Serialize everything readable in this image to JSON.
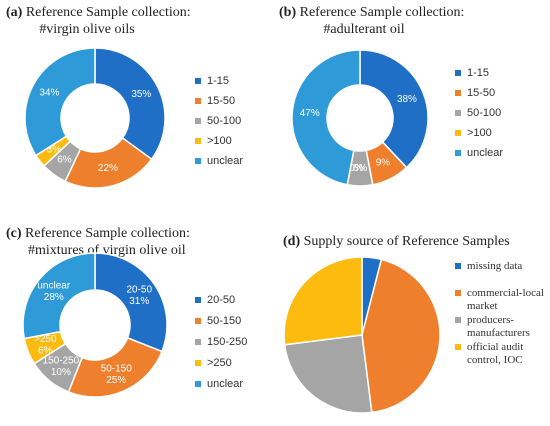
{
  "chart_data": [
    {
      "id": "a",
      "type": "pie",
      "donut": true,
      "title_tag": "(a)",
      "title": "Reference Sample collection:",
      "subtitle": "#virgin olive oils",
      "legend_position": "right",
      "categories": [
        "1-15",
        "15-50",
        "50-100",
        ">100",
        "unclear"
      ],
      "values": [
        35,
        22,
        6,
        3,
        34
      ],
      "value_labels": [
        "35%",
        "22%",
        "6%",
        "3%",
        "34%"
      ],
      "colors": [
        "#1f6fc6",
        "#ee7f2d",
        "#a5a5a5",
        "#fdbb10",
        "#2e9ad7"
      ]
    },
    {
      "id": "b",
      "type": "pie",
      "donut": true,
      "title_tag": "(b)",
      "title": "Reference Sample collection:",
      "subtitle": "#adulterant oil",
      "legend_position": "right",
      "categories": [
        "1-15",
        "15-50",
        "50-100",
        ">100",
        "unclear"
      ],
      "values": [
        38,
        9,
        6,
        0,
        47
      ],
      "value_labels": [
        "38%",
        "9%",
        "6%",
        "0%",
        "47%"
      ],
      "colors": [
        "#1f6fc6",
        "#ee7f2d",
        "#a5a5a5",
        "#fdbb10",
        "#2e9ad7"
      ]
    },
    {
      "id": "c",
      "type": "pie",
      "donut": true,
      "title_tag": "(c)",
      "title": "Reference Sample collection:",
      "subtitle": "#mixtures of virgin olive oil",
      "legend_position": "right",
      "categories": [
        "20-50",
        "50-150",
        "150-250",
        ">250",
        "unclear"
      ],
      "values": [
        31,
        25,
        10,
        6,
        28
      ],
      "slice_names": [
        "20-50",
        "50-150",
        "150-250",
        ">250",
        "unclear"
      ],
      "value_labels": [
        "31%",
        "25%",
        "10%",
        "6%",
        "28%"
      ],
      "colors": [
        "#1f6fc6",
        "#ee7f2d",
        "#a5a5a5",
        "#fdbb10",
        "#2e9ad7"
      ]
    },
    {
      "id": "d",
      "type": "pie",
      "donut": false,
      "title_tag": "(d)",
      "title": "Supply source of Reference Samples",
      "legend_position": "right",
      "categories": [
        "missing data",
        "commercial-local market",
        "producers-manufacturers",
        "official audit control, IOC"
      ],
      "legend_lines": [
        [
          "missing data"
        ],
        [
          "commercial-local",
          "market"
        ],
        [
          "producers-",
          "manufacturers"
        ],
        [
          "official audit",
          "control, IOC"
        ]
      ],
      "values": [
        4,
        44,
        25,
        27
      ],
      "colors": [
        "#1f6fc6",
        "#ee7f2d",
        "#a5a5a5",
        "#fdbb10"
      ]
    }
  ]
}
